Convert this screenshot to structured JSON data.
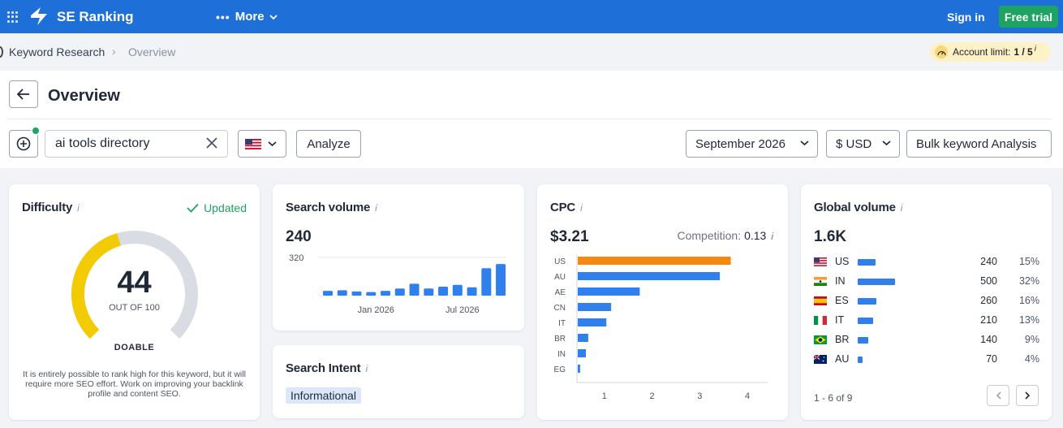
{
  "topbar": {
    "brand": "SE Ranking",
    "more_label": "More",
    "signin_label": "Sign in",
    "free_trial_label": "Free trial"
  },
  "breadcrumb": {
    "items": [
      "Keyword Research",
      "Overview"
    ],
    "separator": "›",
    "account_limit_label": "Account limit:",
    "account_limit_value": "1 / 5",
    "account_limit_info": "i"
  },
  "header": {
    "title": "Overview",
    "search_value": "ai tools directory",
    "analyze_label": "Analyze",
    "date_value": "September 2026",
    "currency_value": "$ USD",
    "bulk_label": "Bulk keyword Analysis"
  },
  "difficulty": {
    "title": "Difficulty",
    "info": "i",
    "updated_label": "Updated",
    "value": 44,
    "max": 100,
    "out_of_label": "OUT OF 100",
    "level_label": "DOABLE",
    "description": "It is entirely possible to rank high for this keyword, but it will require more SEO effort. Work on improving your backlink profile and content SEO.",
    "colors": {
      "filled": "#f2cb05",
      "track": "#d9dce3"
    }
  },
  "search_volume": {
    "title": "Search volume",
    "info": "i",
    "value": "240"
  },
  "search_intent": {
    "title": "Search Intent",
    "info": "i",
    "badge": "Informational"
  },
  "cpc": {
    "title": "CPC",
    "info": "i",
    "value": "$3.21",
    "competition_label": "Competition:",
    "competition_value": "0.13",
    "competition_info": "i"
  },
  "global_volume": {
    "title": "Global volume",
    "info": "i",
    "value": "1.6K",
    "rows": [
      {
        "code": "US",
        "flag": "us-flag-icon",
        "volume": "240",
        "pct": "15%",
        "share": 15
      },
      {
        "code": "IN",
        "flag": "in-flag-icon",
        "volume": "500",
        "pct": "32%",
        "share": 32
      },
      {
        "code": "ES",
        "flag": "es-flag-icon",
        "volume": "260",
        "pct": "16%",
        "share": 16
      },
      {
        "code": "IT",
        "flag": "it-flag-icon",
        "volume": "210",
        "pct": "13%",
        "share": 13
      },
      {
        "code": "BR",
        "flag": "br-flag-icon",
        "volume": "140",
        "pct": "9%",
        "share": 9
      },
      {
        "code": "AU",
        "flag": "au-flag-icon",
        "volume": "70",
        "pct": "4%",
        "share": 4
      }
    ],
    "pager_label": "1 - 6 of 9"
  },
  "chart_data": [
    {
      "type": "bar",
      "id": "search-volume-trend",
      "ylabel": "",
      "y_tick_labels": [
        "320"
      ],
      "ylim": [
        0,
        320
      ],
      "x_tick_labels": [
        "Jan 2026",
        "Jul 2026"
      ],
      "values": [
        40,
        45,
        35,
        30,
        40,
        60,
        100,
        60,
        75,
        90,
        70,
        230,
        265
      ],
      "x_tick_indices": [
        3,
        9
      ],
      "color": "#2f80ed",
      "grid": true
    },
    {
      "type": "bar",
      "orientation": "horizontal",
      "id": "cpc-by-country",
      "categories": [
        "US",
        "AU",
        "AE",
        "CN",
        "IT",
        "BR",
        "IN",
        "EG"
      ],
      "values": [
        3.21,
        2.98,
        1.3,
        0.7,
        0.6,
        0.22,
        0.17,
        0.05
      ],
      "highlight_index": 0,
      "highlight_color": "#f5880f",
      "color": "#2f80ed",
      "xlim": [
        0,
        4
      ],
      "x_tick_labels": [
        "1",
        "2",
        "3",
        "4"
      ],
      "grid": false
    }
  ]
}
